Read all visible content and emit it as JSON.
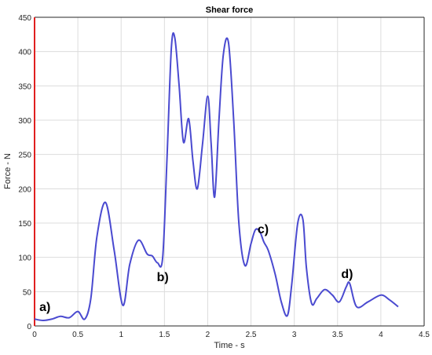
{
  "chart_data": {
    "type": "line",
    "title": "Shear force",
    "xlabel": "Time - s",
    "ylabel": "Force - N",
    "xlim": [
      0,
      4.5
    ],
    "ylim": [
      0,
      450
    ],
    "xticks": [
      "0",
      "0.5",
      "1",
      "1.5",
      "2",
      "2.5",
      "3",
      "3.5",
      "4",
      "4.5"
    ],
    "yticks": [
      "0",
      "50",
      "100",
      "150",
      "200",
      "250",
      "300",
      "350",
      "400",
      "450"
    ],
    "grid": true,
    "line_color": "#4a4ad0",
    "left_axis_color": "#e02020",
    "series": [
      {
        "x": [
          0,
          0.1,
          0.2,
          0.3,
          0.4,
          0.5,
          0.58,
          0.65,
          0.72,
          0.82,
          0.92,
          1.02,
          1.1,
          1.2,
          1.3,
          1.36,
          1.42,
          1.48,
          1.53,
          1.58,
          1.62,
          1.67,
          1.72,
          1.78,
          1.83,
          1.88,
          1.94,
          2.0,
          2.04,
          2.08,
          2.13,
          2.18,
          2.24,
          2.3,
          2.36,
          2.43,
          2.5,
          2.55,
          2.6,
          2.65,
          2.7,
          2.78,
          2.85,
          2.92,
          2.97,
          3.04,
          3.1,
          3.14,
          3.2,
          3.26,
          3.35,
          3.44,
          3.52,
          3.6,
          3.64,
          3.72,
          3.85,
          4.0,
          4.1,
          4.2
        ],
        "y": [
          10,
          8,
          10,
          14,
          12,
          21,
          10,
          40,
          130,
          180,
          110,
          30,
          90,
          125,
          105,
          102,
          92,
          100,
          245,
          405,
          420,
          350,
          268,
          302,
          240,
          200,
          265,
          335,
          265,
          188,
          300,
          395,
          413,
          300,
          150,
          88,
          120,
          140,
          138,
          122,
          110,
          75,
          35,
          15,
          60,
          150,
          155,
          85,
          33,
          40,
          53,
          45,
          35,
          57,
          62,
          28,
          35,
          45,
          38,
          28
        ]
      }
    ],
    "annotations": [
      {
        "text": "a)",
        "x": 0.12,
        "y": 22
      },
      {
        "text": "b)",
        "x": 1.48,
        "y": 65
      },
      {
        "text": "c)",
        "x": 2.64,
        "y": 135
      },
      {
        "text": "d)",
        "x": 3.61,
        "y": 70
      }
    ]
  }
}
